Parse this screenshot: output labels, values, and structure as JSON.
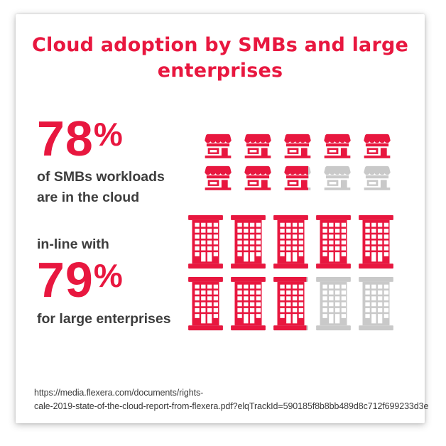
{
  "title": {
    "line1": "Cloud adoption by SMBs and large",
    "line2": "enterprises"
  },
  "ui": {
    "percent_sign": "%"
  },
  "smb": {
    "caption_line1": "of SMBs workloads",
    "caption_line2": "are in the cloud"
  },
  "enterprise": {
    "intro": "in-line with",
    "caption": "for large enterprises"
  },
  "source": {
    "line1": "https://media.flexera.com/documents/rights-",
    "line2": "cale-2019-state-of-the-cloud-report-from-flexera.pdf?elqTrackId=590185f8b8bb489d8c712f699233d3e"
  },
  "chart_data": {
    "type": "pictograph",
    "title": "Cloud adoption by SMBs and large enterprises",
    "series": [
      {
        "name": "SMBs",
        "value_pct": 78,
        "label": "78%",
        "caption": "of SMBs workloads are in the cloud",
        "icon": "storefront",
        "icons_total": 10,
        "icons_full": 7,
        "icons_partial_fraction": 0.8,
        "rows": 2,
        "cols": 5
      },
      {
        "name": "Large enterprises",
        "value_pct": 79,
        "label": "79%",
        "caption": "in-line with 79% for large enterprises",
        "icon": "office-building",
        "icons_total": 10,
        "icons_full": 7,
        "icons_partial_fraction": 0.9,
        "rows": 2,
        "cols": 5
      }
    ],
    "colors": {
      "filled": "#e8173f",
      "empty": "#c9c9c9",
      "title": "#e8173f",
      "text": "#3d3d3d"
    },
    "legend_position": "none",
    "source": "https://media.flexera.com/documents/rights-cale-2019-state-of-the-cloud-report-from-flexera.pdf?elqTrackId=590185f8b8bb489d8c712f699233d3e"
  }
}
